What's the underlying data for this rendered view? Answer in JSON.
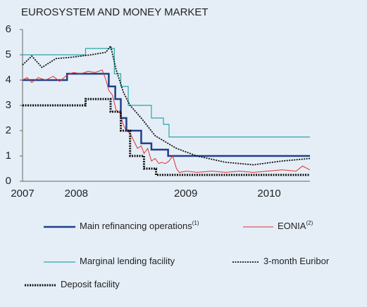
{
  "chart_data": {
    "type": "line",
    "title": "EUROSYSTEM AND MONEY MARKET",
    "xlim": [
      2007.45,
      2010.55
    ],
    "xticks": [
      {
        "value": 2007.45,
        "label": "2007"
      },
      {
        "value": 2008.03,
        "label": "2008"
      },
      {
        "value": 2009.21,
        "label": "2009"
      },
      {
        "value": 2010.11,
        "label": "2010"
      }
    ],
    "ylim": [
      0,
      6
    ],
    "yticks": [
      0,
      1,
      2,
      3,
      4,
      5,
      6
    ],
    "grid": false,
    "series": [
      {
        "name": "Main refinancing operations",
        "footnote": "(1)",
        "color": "#1f3e8c",
        "width": 2.5,
        "dash": "none",
        "step": true,
        "x": [
          2007.45,
          2007.93,
          2008.38,
          2008.45,
          2008.51,
          2008.57,
          2008.73,
          2008.84,
          2009.02,
          2010.55
        ],
        "values": [
          4,
          4.25,
          3.75,
          3.25,
          2.5,
          2,
          1.5,
          1.25,
          1,
          1
        ]
      },
      {
        "name": "EONIA",
        "footnote": "(2)",
        "color": "#e03030",
        "width": 1,
        "dash": "none",
        "step": false,
        "x": [
          2007.45,
          2007.5,
          2007.55,
          2007.62,
          2007.7,
          2007.78,
          2007.85,
          2007.93,
          2008.0,
          2008.08,
          2008.16,
          2008.23,
          2008.31,
          2008.35,
          2008.38,
          2008.42,
          2008.46,
          2008.5,
          2008.54,
          2008.57,
          2008.61,
          2008.65,
          2008.69,
          2008.73,
          2008.76,
          2008.8,
          2008.84,
          2008.88,
          2008.92,
          2008.95,
          2008.99,
          2009.03,
          2009.07,
          2009.11,
          2009.14,
          2009.22,
          2009.33,
          2009.49,
          2009.64,
          2009.79,
          2009.94,
          2010.09,
          2010.25,
          2010.4,
          2010.47,
          2010.55
        ],
        "values": [
          4.0,
          4.1,
          3.9,
          4.1,
          4.0,
          4.15,
          3.95,
          4.2,
          4.3,
          4.25,
          4.35,
          4.3,
          4.4,
          4.0,
          3.6,
          3.4,
          2.8,
          2.7,
          2.2,
          2.0,
          1.9,
          1.6,
          1.3,
          1.4,
          1.1,
          1.3,
          0.8,
          0.9,
          0.7,
          0.75,
          0.7,
          0.8,
          1.0,
          0.5,
          0.35,
          0.4,
          0.35,
          0.4,
          0.35,
          0.4,
          0.35,
          0.4,
          0.45,
          0.4,
          0.6,
          0.45
        ]
      },
      {
        "name": "Marginal lending facility",
        "color": "#2aa5a5",
        "width": 1.2,
        "dash": "none",
        "step": true,
        "x": [
          2007.45,
          2008.13,
          2008.44,
          2008.51,
          2008.59,
          2008.84,
          2008.97,
          2009.03,
          2010.55
        ],
        "values": [
          5,
          5.25,
          4.25,
          3.75,
          3,
          2.5,
          2.25,
          1.75,
          1.75
        ]
      },
      {
        "name": "3-month Euribor",
        "color": "#111111",
        "width": 1.8,
        "dash": "2 1.5",
        "step": false,
        "x": [
          2007.45,
          2007.55,
          2007.66,
          2007.81,
          2007.97,
          2008.19,
          2008.35,
          2008.4,
          2008.46,
          2008.54,
          2008.61,
          2008.73,
          2008.88,
          2009.11,
          2009.33,
          2009.64,
          2009.94,
          2010.25,
          2010.55
        ],
        "values": [
          4.6,
          4.95,
          4.5,
          4.85,
          4.9,
          5.0,
          5.1,
          5.35,
          4.4,
          3.5,
          3.0,
          2.5,
          1.8,
          1.3,
          1.0,
          0.75,
          0.65,
          0.8,
          0.9
        ]
      },
      {
        "name": "Deposit facility",
        "color": "#111111",
        "width": 3,
        "dash": "2 1.5",
        "step": true,
        "x": [
          2007.45,
          2008.13,
          2008.4,
          2008.51,
          2008.61,
          2008.76,
          2008.89,
          2010.55
        ],
        "values": [
          3,
          3.25,
          2.75,
          2,
          1,
          0.5,
          0.25,
          0.25
        ]
      }
    ]
  }
}
